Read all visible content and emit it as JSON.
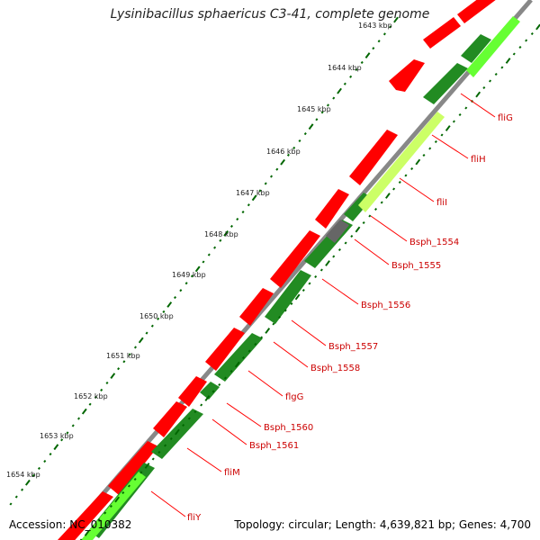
{
  "title": "Lysinibacillus sphaericus C3-41, complete genome",
  "footer": {
    "accession": "Accession: NC_010382",
    "summary": "Topology: circular; Length: 4,639,821 bp; Genes: 4,700"
  },
  "scale": {
    "labels": [
      "1643 kbp",
      "1644 kbp",
      "1645 kbp",
      "1646 kbp",
      "1647 kbp",
      "1648 kbp",
      "1649 kbp",
      "1650 kbp",
      "1651 kbp",
      "1652 kbp",
      "1653 kbp",
      "1654 kbp"
    ]
  },
  "genes": [
    {
      "name": "fliG"
    },
    {
      "name": "fliH"
    },
    {
      "name": "fliI"
    },
    {
      "name": "Bsph_1554"
    },
    {
      "name": "Bsph_1555"
    },
    {
      "name": "Bsph_1556"
    },
    {
      "name": "Bsph_1557"
    },
    {
      "name": "Bsph_1558"
    },
    {
      "name": "flgG"
    },
    {
      "name": "Bsph_1560"
    },
    {
      "name": "Bsph_1561"
    },
    {
      "name": "fliM"
    },
    {
      "name": "fliY"
    }
  ],
  "colors": {
    "backbone": "#888888",
    "cds_forward": "#ff0000",
    "cds_reverse": "#228b22",
    "track_light": "#66ff33",
    "track_pale": "#ccff66",
    "tick": "#006600",
    "label_line": "#ff0000",
    "label_text": "#cc0000"
  }
}
